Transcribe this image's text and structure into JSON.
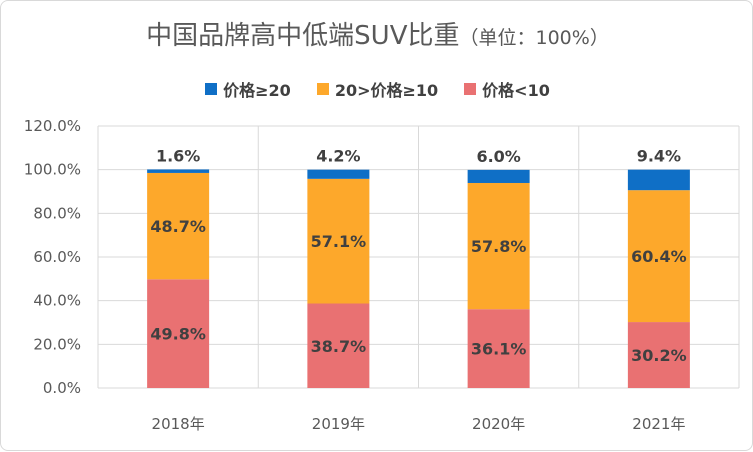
{
  "chart_data": {
    "type": "bar",
    "stacked": true,
    "title": "中国品牌高中低端SUV比重",
    "subtitle": "（单位：100%）",
    "categories": [
      "2018年",
      "2019年",
      "2020年",
      "2021年"
    ],
    "series": [
      {
        "name": "价格<10",
        "values": [
          49.8,
          38.7,
          36.1,
          30.2
        ],
        "color": "#E97172",
        "labels": [
          "49.8%",
          "38.7%",
          "36.1%",
          "30.2%"
        ]
      },
      {
        "name": "20>价格≥10",
        "values": [
          48.7,
          57.1,
          57.8,
          60.4
        ],
        "color": "#FDA82B",
        "labels": [
          "48.7%",
          "57.1%",
          "57.8%",
          "60.4%"
        ]
      },
      {
        "name": "价格≥20",
        "values": [
          1.6,
          4.2,
          6.0,
          9.4
        ],
        "color": "#0F6FC6",
        "labels": [
          "1.6%",
          "4.2%",
          "6.0%",
          "9.4%"
        ]
      }
    ],
    "legend_order": [
      "价格≥20",
      "20>价格≥10",
      "价格<10"
    ],
    "legend_position": "top",
    "ylim": [
      0,
      120
    ],
    "yticks": [
      "0.0%",
      "20.0%",
      "40.0%",
      "60.0%",
      "80.0%",
      "100.0%",
      "120.0%"
    ],
    "grid": true
  }
}
